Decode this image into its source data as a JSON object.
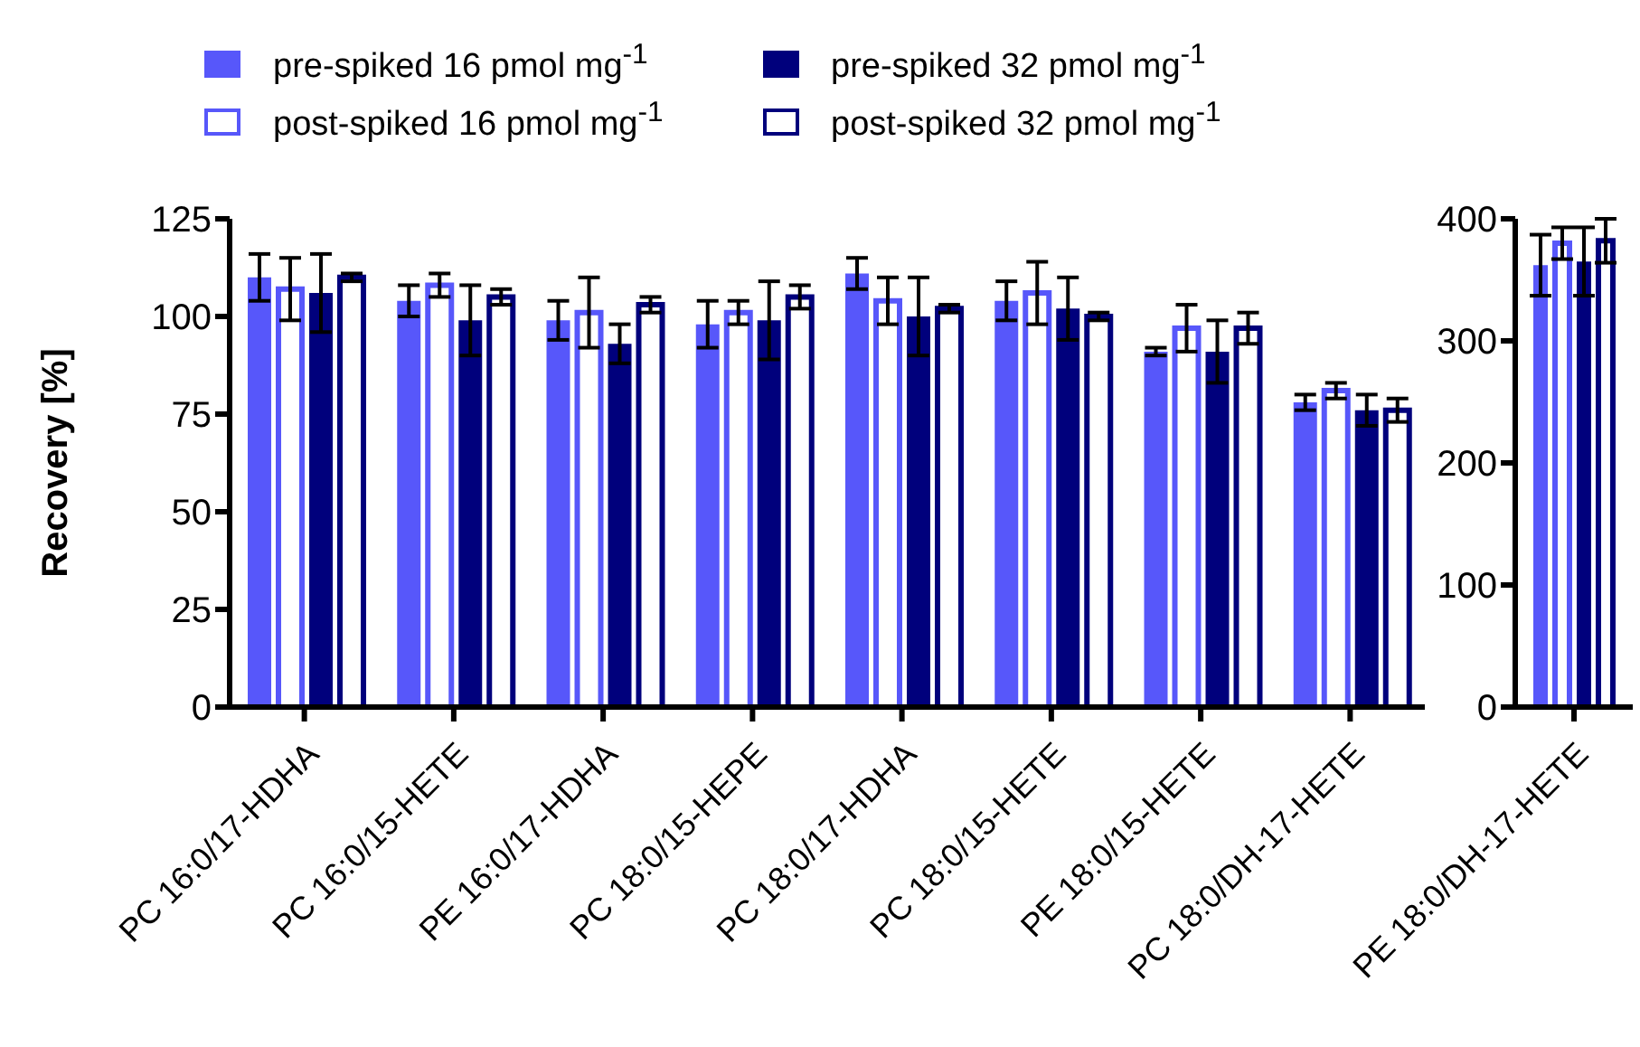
{
  "chart_data": [
    {
      "type": "bar",
      "ylabel": "Recovery [%]",
      "categories": [
        "PC 16:0/17-HDHA",
        "PC 16:0/15-HETE",
        "PE 16:0/17-HDHA",
        "PC 18:0/15-HEPE",
        "PC 18:0/17-HDHA",
        "PC 18:0/15-HETE",
        "PE 18:0/15-HETE",
        "PC 18:0/DH-17-HETE"
      ],
      "ylim": [
        0,
        125
      ],
      "yticks": [
        0,
        25,
        50,
        75,
        100,
        125
      ],
      "legend": "top",
      "grid": false,
      "series": [
        {
          "name": "pre-spiked 16 pmol mg$^{-1}$",
          "color": "#5757fa",
          "values": [
            110,
            104,
            99,
            98,
            111,
            104,
            91,
            78
          ],
          "errors": [
            6,
            4,
            5,
            6,
            4,
            5,
            1,
            2
          ]
        },
        {
          "name": "post-spiked 16 pmol mg$^{-1}$",
          "color": "#5757fa",
          "values": [
            107,
            108,
            101,
            101,
            104,
            106,
            97,
            81
          ],
          "errors": [
            8,
            3,
            9,
            3,
            6,
            8,
            6,
            2
          ]
        },
        {
          "name": "pre-spiked 32 pmol mg$^{-1}$",
          "color": "#00007c",
          "values": [
            106,
            99,
            93,
            99,
            100,
            102,
            91,
            76
          ],
          "errors": [
            10,
            9,
            5,
            10,
            10,
            8,
            8,
            4
          ]
        },
        {
          "name": "post-spiked 32 pmol mg$^{-1}$",
          "color": "#00007c",
          "values": [
            110,
            105,
            103,
            105,
            102,
            100,
            97,
            76
          ],
          "errors": [
            1,
            2,
            2,
            3,
            1,
            1,
            4,
            3
          ]
        }
      ]
    },
    {
      "type": "bar",
      "categories": [
        "PE 18:0/DH-17-HETE"
      ],
      "ylim": [
        0,
        400
      ],
      "yticks": [
        0,
        100,
        200,
        300,
        400
      ],
      "grid": false,
      "series": [
        {
          "color": "#5757fa",
          "values": [
            362
          ],
          "errors": [
            25
          ]
        },
        {
          "color": "#5757fa",
          "values": [
            380
          ],
          "errors": [
            13
          ]
        },
        {
          "color": "#00007c",
          "values": [
            365
          ],
          "errors": [
            28
          ]
        },
        {
          "color": "#00007c",
          "values": [
            382
          ],
          "errors": [
            18
          ]
        }
      ]
    }
  ]
}
